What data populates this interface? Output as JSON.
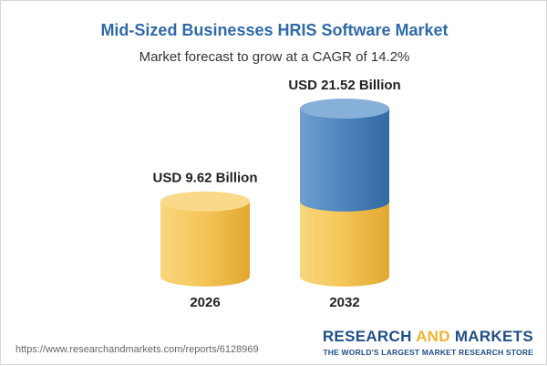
{
  "chart_data": {
    "type": "bar",
    "title": "Mid-Sized Businesses HRIS Software Market",
    "subtitle": "Market forecast to grow at a CAGR of 14.2%",
    "categories": [
      "2026",
      "2032"
    ],
    "values": [
      9.62,
      21.52
    ],
    "value_labels": [
      "USD 9.62 Billion",
      "USD 21.52 Billion"
    ],
    "colors": {
      "base": "#f5c65a",
      "growth": "#4f86c0"
    }
  },
  "footer": {
    "url": "https://www.researchandmarkets.com/reports/6128969",
    "brand_word1": "RESEARCH",
    "brand_and": "AND",
    "brand_word2": "MARKETS",
    "brand_tagline": "THE WORLD'S LARGEST MARKET RESEARCH STORE"
  }
}
